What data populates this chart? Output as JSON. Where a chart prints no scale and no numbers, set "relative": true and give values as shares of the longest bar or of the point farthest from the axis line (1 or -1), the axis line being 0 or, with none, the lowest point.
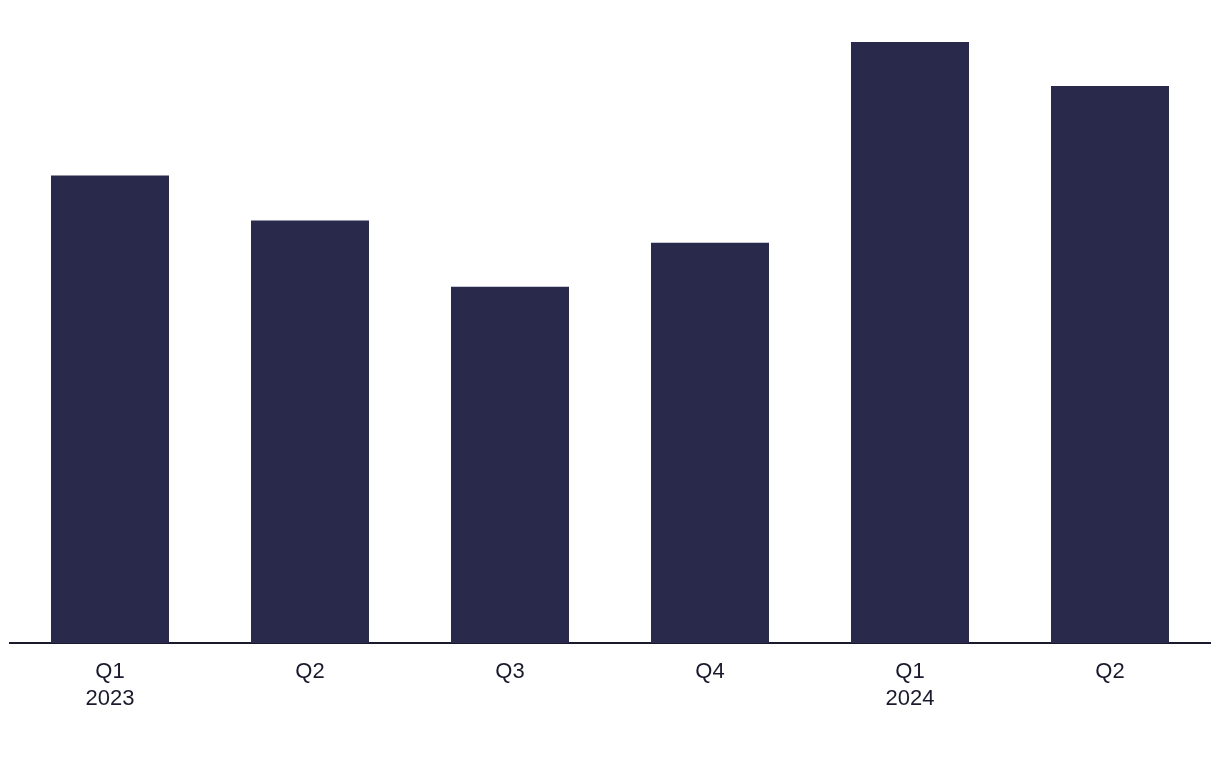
{
  "chart_data": {
    "type": "bar",
    "relative": true,
    "categories": [
      "Q1\n2023",
      "Q2",
      "Q3",
      "Q4",
      "Q1\n2024",
      "Q2"
    ],
    "values": [
      0.778,
      0.703,
      0.593,
      0.666,
      1,
      0.927
    ],
    "color": "#29294b",
    "grid": false,
    "legend": false
  }
}
